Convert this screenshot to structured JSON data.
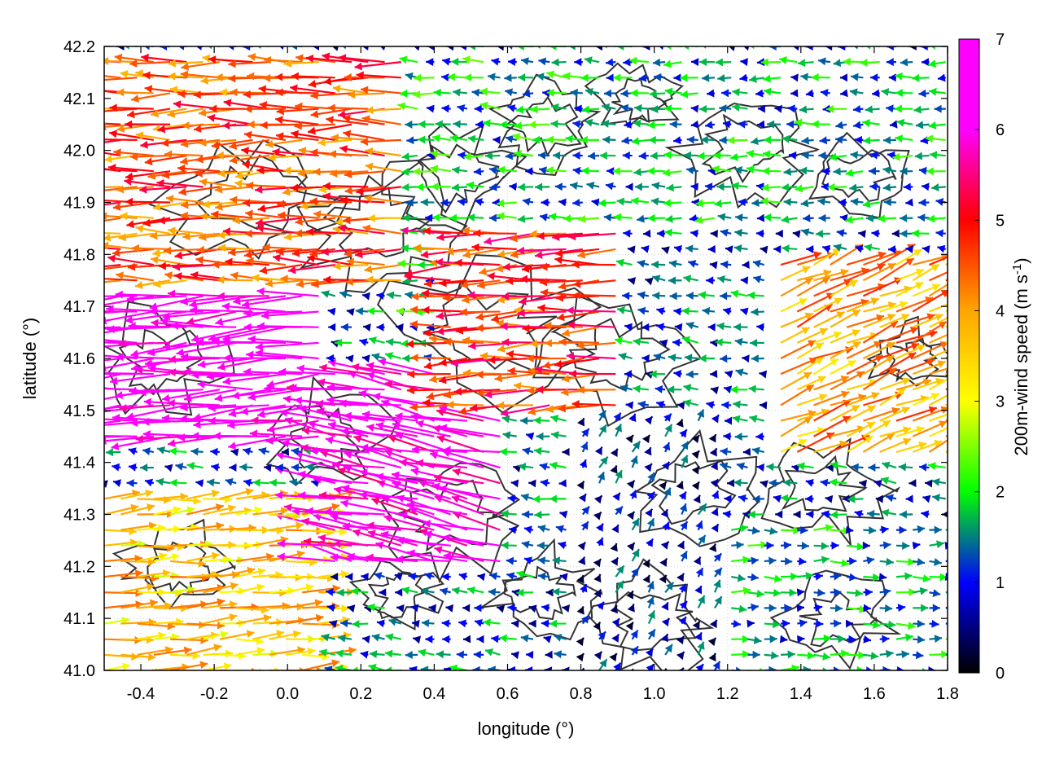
{
  "chart_data": {
    "type": "vector-field",
    "xlabel": "longitude (°)",
    "ylabel": "latitude (°)",
    "colorbar_label": "200m-wind speed (m s",
    "colorbar_label_sup": "-1",
    "colorbar_label_end": ")",
    "xlim": [
      -0.5,
      1.8
    ],
    "ylim": [
      41.0,
      42.2
    ],
    "xticks": [
      "-0.4",
      "-0.2",
      "0.0",
      "0.2",
      "0.4",
      "0.6",
      "0.8",
      "1.0",
      "1.2",
      "1.4",
      "1.6",
      "1.8"
    ],
    "xtick_values": [
      -0.4,
      -0.2,
      0.0,
      0.2,
      0.4,
      0.6,
      0.8,
      1.0,
      1.2,
      1.4,
      1.6,
      1.8
    ],
    "yticks": [
      "41.0",
      "41.1",
      "41.2",
      "41.3",
      "41.4",
      "41.5",
      "41.6",
      "41.7",
      "41.8",
      "41.9",
      "42.0",
      "42.1",
      "42.2"
    ],
    "ytick_values": [
      41.0,
      41.1,
      41.2,
      41.3,
      41.4,
      41.5,
      41.6,
      41.7,
      41.8,
      41.9,
      42.0,
      42.1,
      42.2
    ],
    "clim": [
      0,
      7
    ],
    "cticks": [
      "0",
      "1",
      "2",
      "3",
      "4",
      "5",
      "6",
      "7"
    ],
    "ctick_values": [
      0,
      1,
      2,
      3,
      4,
      5,
      6,
      7
    ],
    "grid": true,
    "colormap": [
      "#000000",
      "#0000ff",
      "#00ff00",
      "#ffff00",
      "#ffa500",
      "#ff0000",
      "#ff00ff"
    ],
    "colormap_stops": [
      0,
      1,
      2,
      3,
      4,
      5,
      6,
      7
    ],
    "contour_color": "#333333",
    "wind_regions": [
      {
        "lon": [
          -0.5,
          0.35
        ],
        "lat": [
          41.75,
          42.2
        ],
        "u": -3.8,
        "v": 0.0,
        "speed": 4.5
      },
      {
        "lon": [
          -0.5,
          0.1
        ],
        "lat": [
          41.45,
          41.75
        ],
        "u": -5.5,
        "v": -0.3,
        "speed": 6.5
      },
      {
        "lon": [
          0.1,
          0.6
        ],
        "lat": [
          41.2,
          41.6
        ],
        "u": -5.0,
        "v": 1.0,
        "speed": 6.2
      },
      {
        "lon": [
          0.35,
          0.9
        ],
        "lat": [
          41.6,
          42.2
        ],
        "u": -1.5,
        "v": 0.1,
        "speed": 1.6
      },
      {
        "lon": [
          0.4,
          0.9
        ],
        "lat": [
          41.5,
          41.85
        ],
        "u": -4.5,
        "v": -0.2,
        "speed": 4.8
      },
      {
        "lon": [
          0.9,
          1.8
        ],
        "lat": [
          41.85,
          42.2
        ],
        "u": -1.5,
        "v": 0.0,
        "speed": 1.5
      },
      {
        "lon": [
          1.3,
          1.8
        ],
        "lat": [
          41.4,
          41.8
        ],
        "u": 3.5,
        "v": 1.5,
        "speed": 4.0
      },
      {
        "lon": [
          1.2,
          1.8
        ],
        "lat": [
          41.0,
          41.3
        ],
        "u": 1.5,
        "v": 0.0,
        "speed": 1.5
      },
      {
        "lon": [
          -0.5,
          0.1
        ],
        "lat": [
          41.0,
          41.35
        ],
        "u": 2.5,
        "v": 0.2,
        "speed": 3.6
      },
      {
        "lon": [
          0.8,
          1.2
        ],
        "lat": [
          41.0,
          41.5
        ],
        "u": 0.3,
        "v": 0.5,
        "speed": 0.8
      }
    ]
  }
}
